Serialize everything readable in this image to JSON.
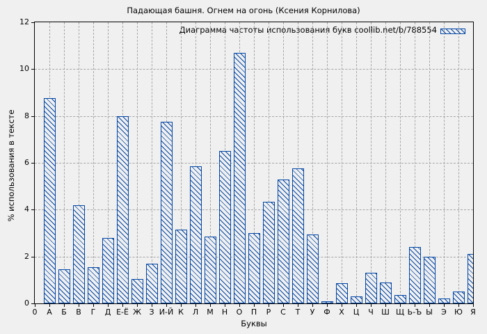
{
  "colors": {
    "bar": "#0044a4",
    "grid": "#a6a6a6",
    "axis": "#000000",
    "background": "#f0f0f0",
    "text": "#000000"
  },
  "chart_data": {
    "type": "bar",
    "title": "Падающая башня. Огнем на огонь (Ксения Корнилова)",
    "legend_label": "Диаграмма частоты использования букв coollib.net/b/788554",
    "legend_position": "top-right-inside",
    "xlabel": "Буквы",
    "ylabel": "% использования в тексте",
    "x_origin_label": "0",
    "categories": [
      "А",
      "Б",
      "В",
      "Г",
      "Д",
      "Е-Ё",
      "Ж",
      "З",
      "И-Й",
      "К",
      "Л",
      "М",
      "Н",
      "О",
      "П",
      "Р",
      "С",
      "Т",
      "У",
      "Ф",
      "Х",
      "Ц",
      "Ч",
      "Ш",
      "Щ",
      "Ь-Ъ",
      "Ы",
      "Э",
      "Ю",
      "Я"
    ],
    "values": [
      8.75,
      1.45,
      4.2,
      1.55,
      2.8,
      8.0,
      1.05,
      1.7,
      7.75,
      3.15,
      5.85,
      2.85,
      6.5,
      10.7,
      3.0,
      4.35,
      5.3,
      5.75,
      2.95,
      0.1,
      0.85,
      0.3,
      1.3,
      0.9,
      0.35,
      2.4,
      2.0,
      0.2,
      0.5,
      2.1
    ],
    "ylim": [
      0,
      12
    ],
    "yticks": [
      0,
      2,
      4,
      6,
      8,
      10,
      12
    ],
    "grid": true,
    "bar_style": "hatched-diagonal",
    "last_bar_clipped_at_right_border": true
  }
}
